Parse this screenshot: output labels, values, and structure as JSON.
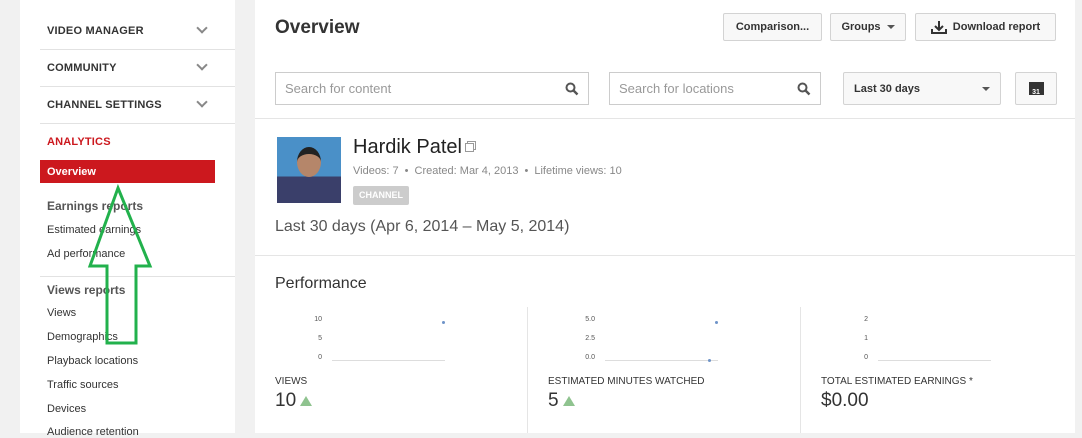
{
  "sidebar": {
    "sections": [
      {
        "label": "VIDEO MANAGER"
      },
      {
        "label": "COMMUNITY"
      },
      {
        "label": "CHANNEL SETTINGS"
      }
    ],
    "analytics_label": "ANALYTICS",
    "active_item": "Overview",
    "earnings": {
      "title": "Earnings reports",
      "items": [
        "Estimated earnings",
        "Ad performance"
      ]
    },
    "views": {
      "title": "Views reports",
      "items": [
        "Views",
        "Demographics",
        "Playback locations",
        "Traffic sources",
        "Devices",
        "Audience retention"
      ]
    },
    "accent": "#cc181e"
  },
  "header": {
    "title": "Overview",
    "comparison": "Comparison...",
    "groups": "Groups",
    "download": "Download report"
  },
  "filters": {
    "search_content_placeholder": "Search for content",
    "search_locations_placeholder": "Search for locations",
    "date_range": "Last 30 days",
    "calendar_day": "31"
  },
  "channel": {
    "name": "Hardik Patel",
    "videos": "Videos: 7",
    "created": "Created: Mar 4, 2013",
    "lifetime": "Lifetime views: 10",
    "badge": "CHANNEL",
    "sep": "•"
  },
  "period": "Last 30 days (Apr 6, 2014 – May 5, 2014)",
  "performance": {
    "title": "Performance",
    "metrics": [
      {
        "label": "VIEWS",
        "value": "10",
        "trend": "up",
        "ticks": [
          "10",
          "5",
          "0"
        ]
      },
      {
        "label": "ESTIMATED MINUTES WATCHED",
        "value": "5",
        "trend": "up",
        "ticks": [
          "5.0",
          "2.5",
          "0.0"
        ]
      },
      {
        "label": "TOTAL ESTIMATED EARNINGS *",
        "value": "$0.00",
        "trend": "none",
        "ticks": [
          "2",
          "1",
          "0"
        ]
      }
    ]
  },
  "chart_data": [
    {
      "type": "scatter",
      "y_ticks": [
        0,
        5,
        10
      ],
      "ylim": [
        0,
        10
      ],
      "points": [
        {
          "x": "end",
          "y": 10
        }
      ]
    },
    {
      "type": "scatter",
      "y_ticks": [
        0,
        2.5,
        5
      ],
      "ylim": [
        0,
        5
      ],
      "points": [
        {
          "x": "end",
          "y": 5
        },
        {
          "x": "end-1",
          "y": 0
        }
      ]
    },
    {
      "type": "scatter",
      "y_ticks": [
        0,
        1,
        2
      ],
      "ylim": [
        0,
        2
      ],
      "points": []
    }
  ]
}
